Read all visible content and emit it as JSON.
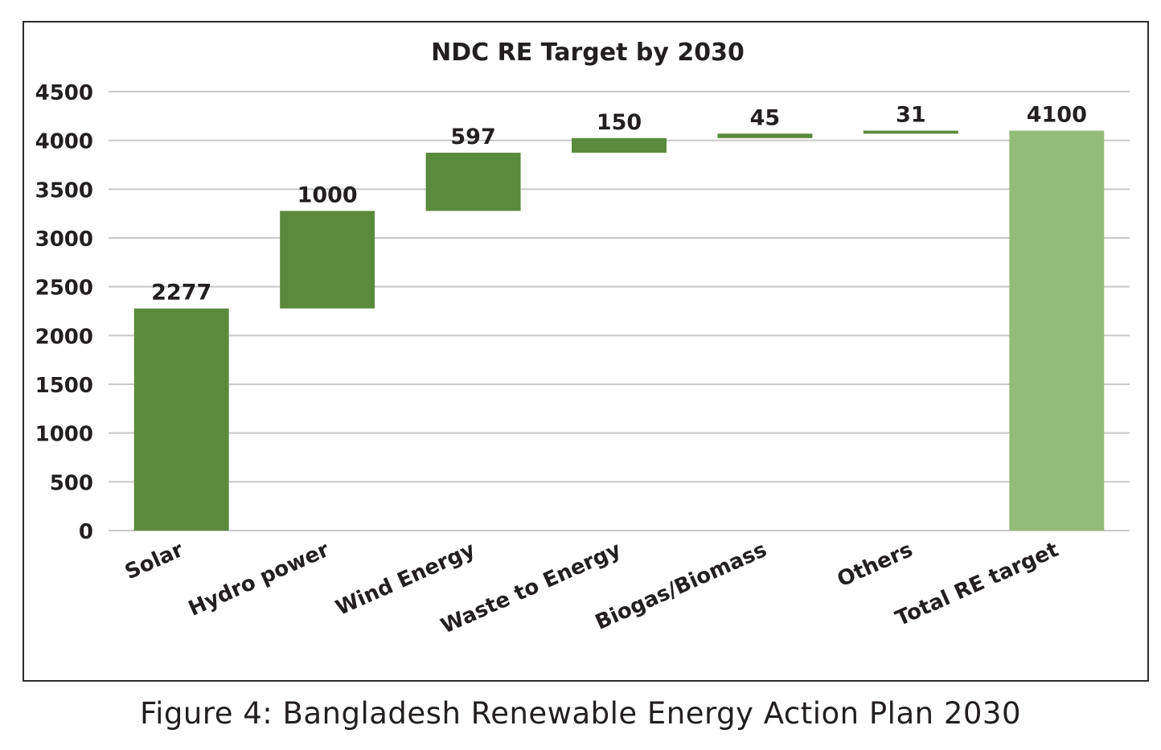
{
  "chart_data": {
    "type": "bar",
    "subtype": "waterfall",
    "title": "NDC RE Target by 2030",
    "xlabel": "",
    "ylabel": "",
    "ylim": [
      0,
      4500
    ],
    "yticks": [
      0,
      500,
      1000,
      1500,
      2000,
      2500,
      3000,
      3500,
      4000,
      4500
    ],
    "grid": true,
    "legend": "none",
    "categories": [
      "Solar",
      "Hydro power",
      "Wind Energy",
      "Waste to Energy",
      "Biogas/Biomass",
      "Others",
      "Total RE target"
    ],
    "values": [
      2277,
      1000,
      597,
      150,
      45,
      31,
      4100
    ],
    "data_labels": [
      "2277",
      "1000",
      "597",
      "150",
      "45",
      "31",
      "4100"
    ],
    "is_total": [
      false,
      false,
      false,
      false,
      false,
      false,
      true
    ],
    "colors": {
      "increase": "#5a8a3c",
      "total": "#92bc78",
      "grid": "#c8c8c8",
      "text": "#231f20"
    }
  },
  "caption": "Figure 4: Bangladesh Renewable Energy Action Plan 2030"
}
